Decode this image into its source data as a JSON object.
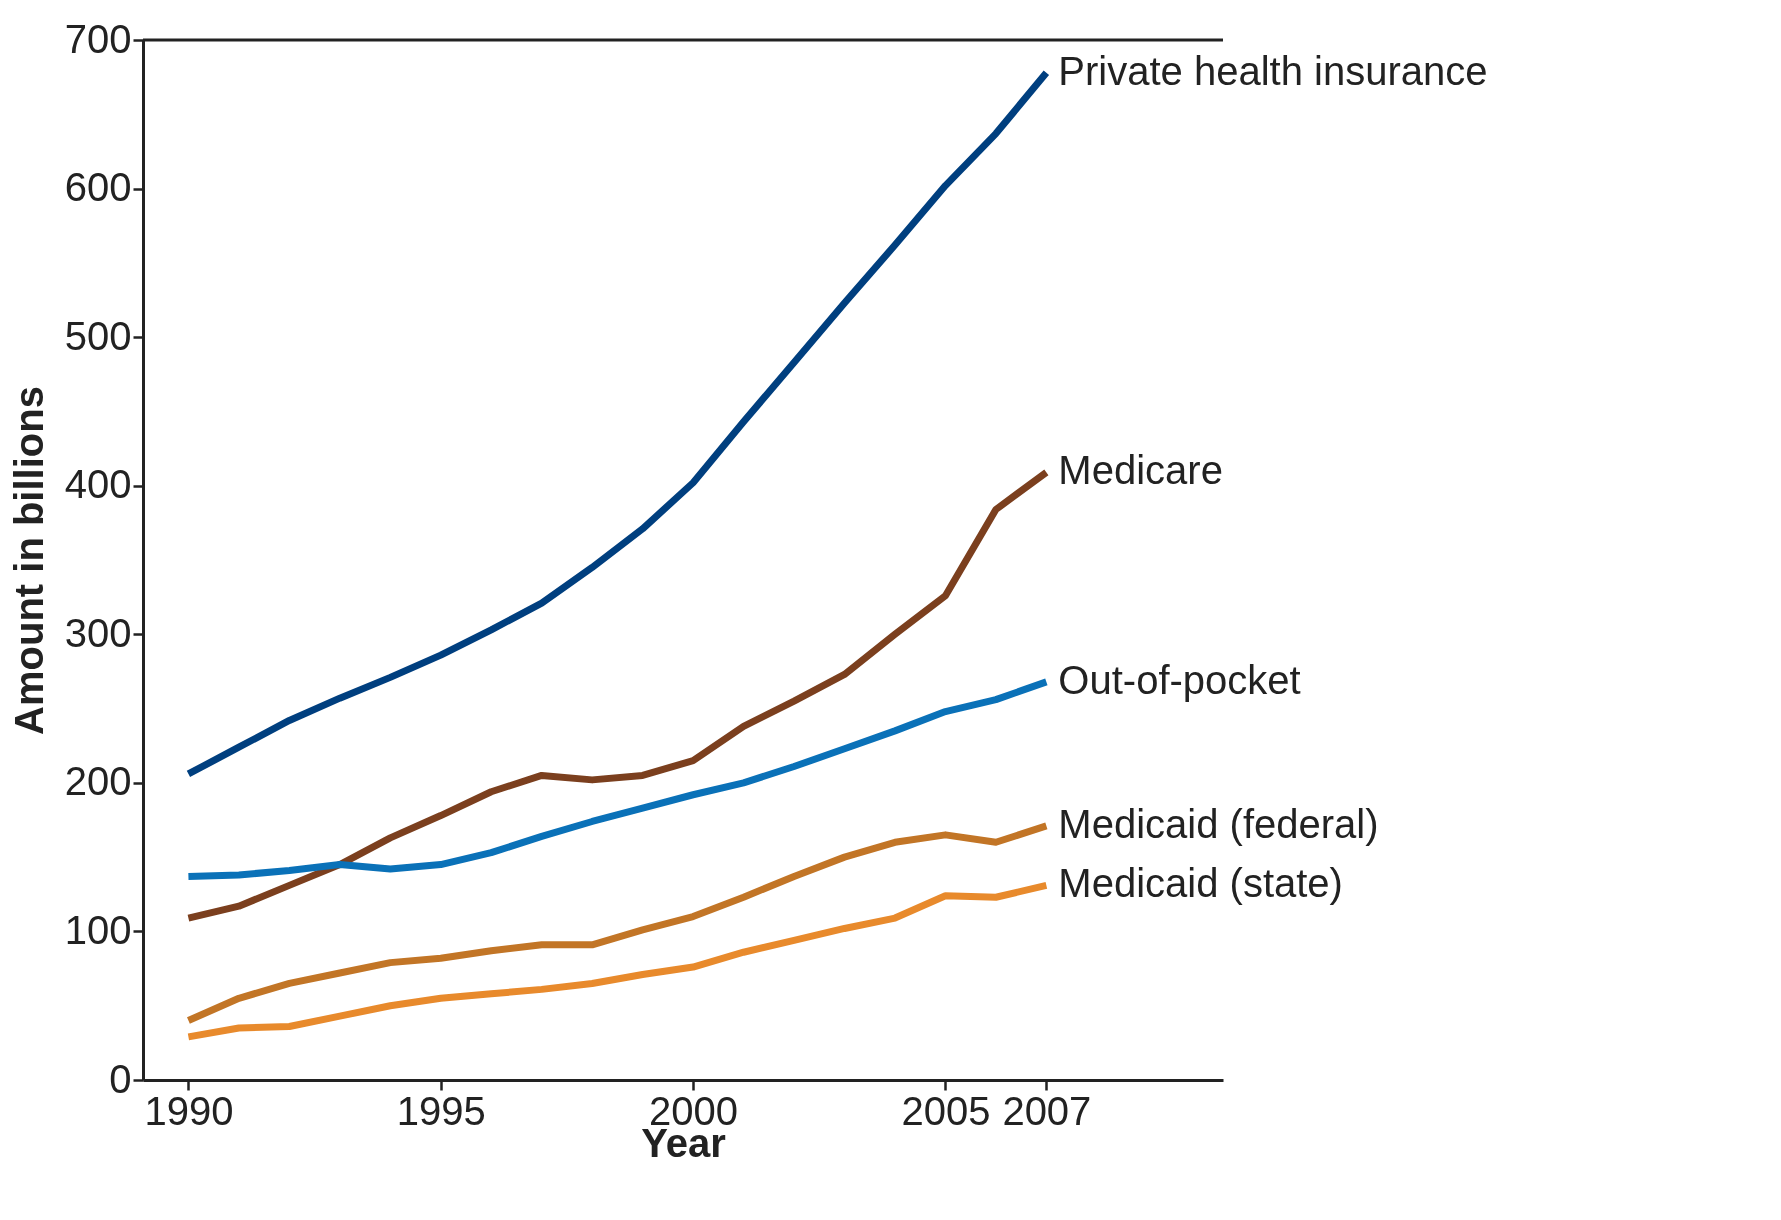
{
  "chart_data": {
    "type": "line",
    "xlabel": "Year",
    "ylabel": "Amount in billions",
    "x": [
      1990,
      1991,
      1992,
      1993,
      1994,
      1995,
      1996,
      1997,
      1998,
      1999,
      2000,
      2001,
      2002,
      2003,
      2004,
      2005,
      2006,
      2007
    ],
    "series": [
      {
        "name": "Private health insurance",
        "color": "#003f7f",
        "values": [
          206,
          224,
          242,
          257,
          271,
          286,
          303,
          321,
          345,
          371,
          402,
          443,
          483,
          523,
          562,
          602,
          637,
          678
        ]
      },
      {
        "name": "Medicare",
        "color": "#7b3f1e",
        "values": [
          109,
          117,
          131,
          145,
          163,
          178,
          194,
          205,
          202,
          205,
          215,
          238,
          255,
          273,
          300,
          326,
          384,
          409
        ]
      },
      {
        "name": "Out-of-pocket",
        "color": "#0a71b8",
        "values": [
          137,
          138,
          141,
          145,
          142,
          145,
          153,
          164,
          174,
          183,
          192,
          200,
          211,
          223,
          235,
          248,
          256,
          268
        ]
      },
      {
        "name": "Medicaid (federal)",
        "color": "#c27526",
        "values": [
          40,
          55,
          65,
          72,
          79,
          82,
          87,
          91,
          91,
          101,
          110,
          123,
          137,
          150,
          160,
          165,
          160,
          171
        ]
      },
      {
        "name": "Medicaid (state)",
        "color": "#e88a2c",
        "values": [
          29,
          35,
          36,
          43,
          50,
          55,
          58,
          61,
          65,
          71,
          76,
          86,
          94,
          102,
          109,
          124,
          123,
          131
        ]
      }
    ],
    "xlim": [
      1989.1,
      2010.5
    ],
    "xticks": [
      1990,
      1995,
      2000,
      2005,
      2007
    ],
    "ylim": [
      0,
      700
    ],
    "yticks": [
      0,
      100,
      200,
      300,
      400,
      500,
      600,
      700
    ],
    "legend": false,
    "marker": "none",
    "line_style": "solid"
  }
}
